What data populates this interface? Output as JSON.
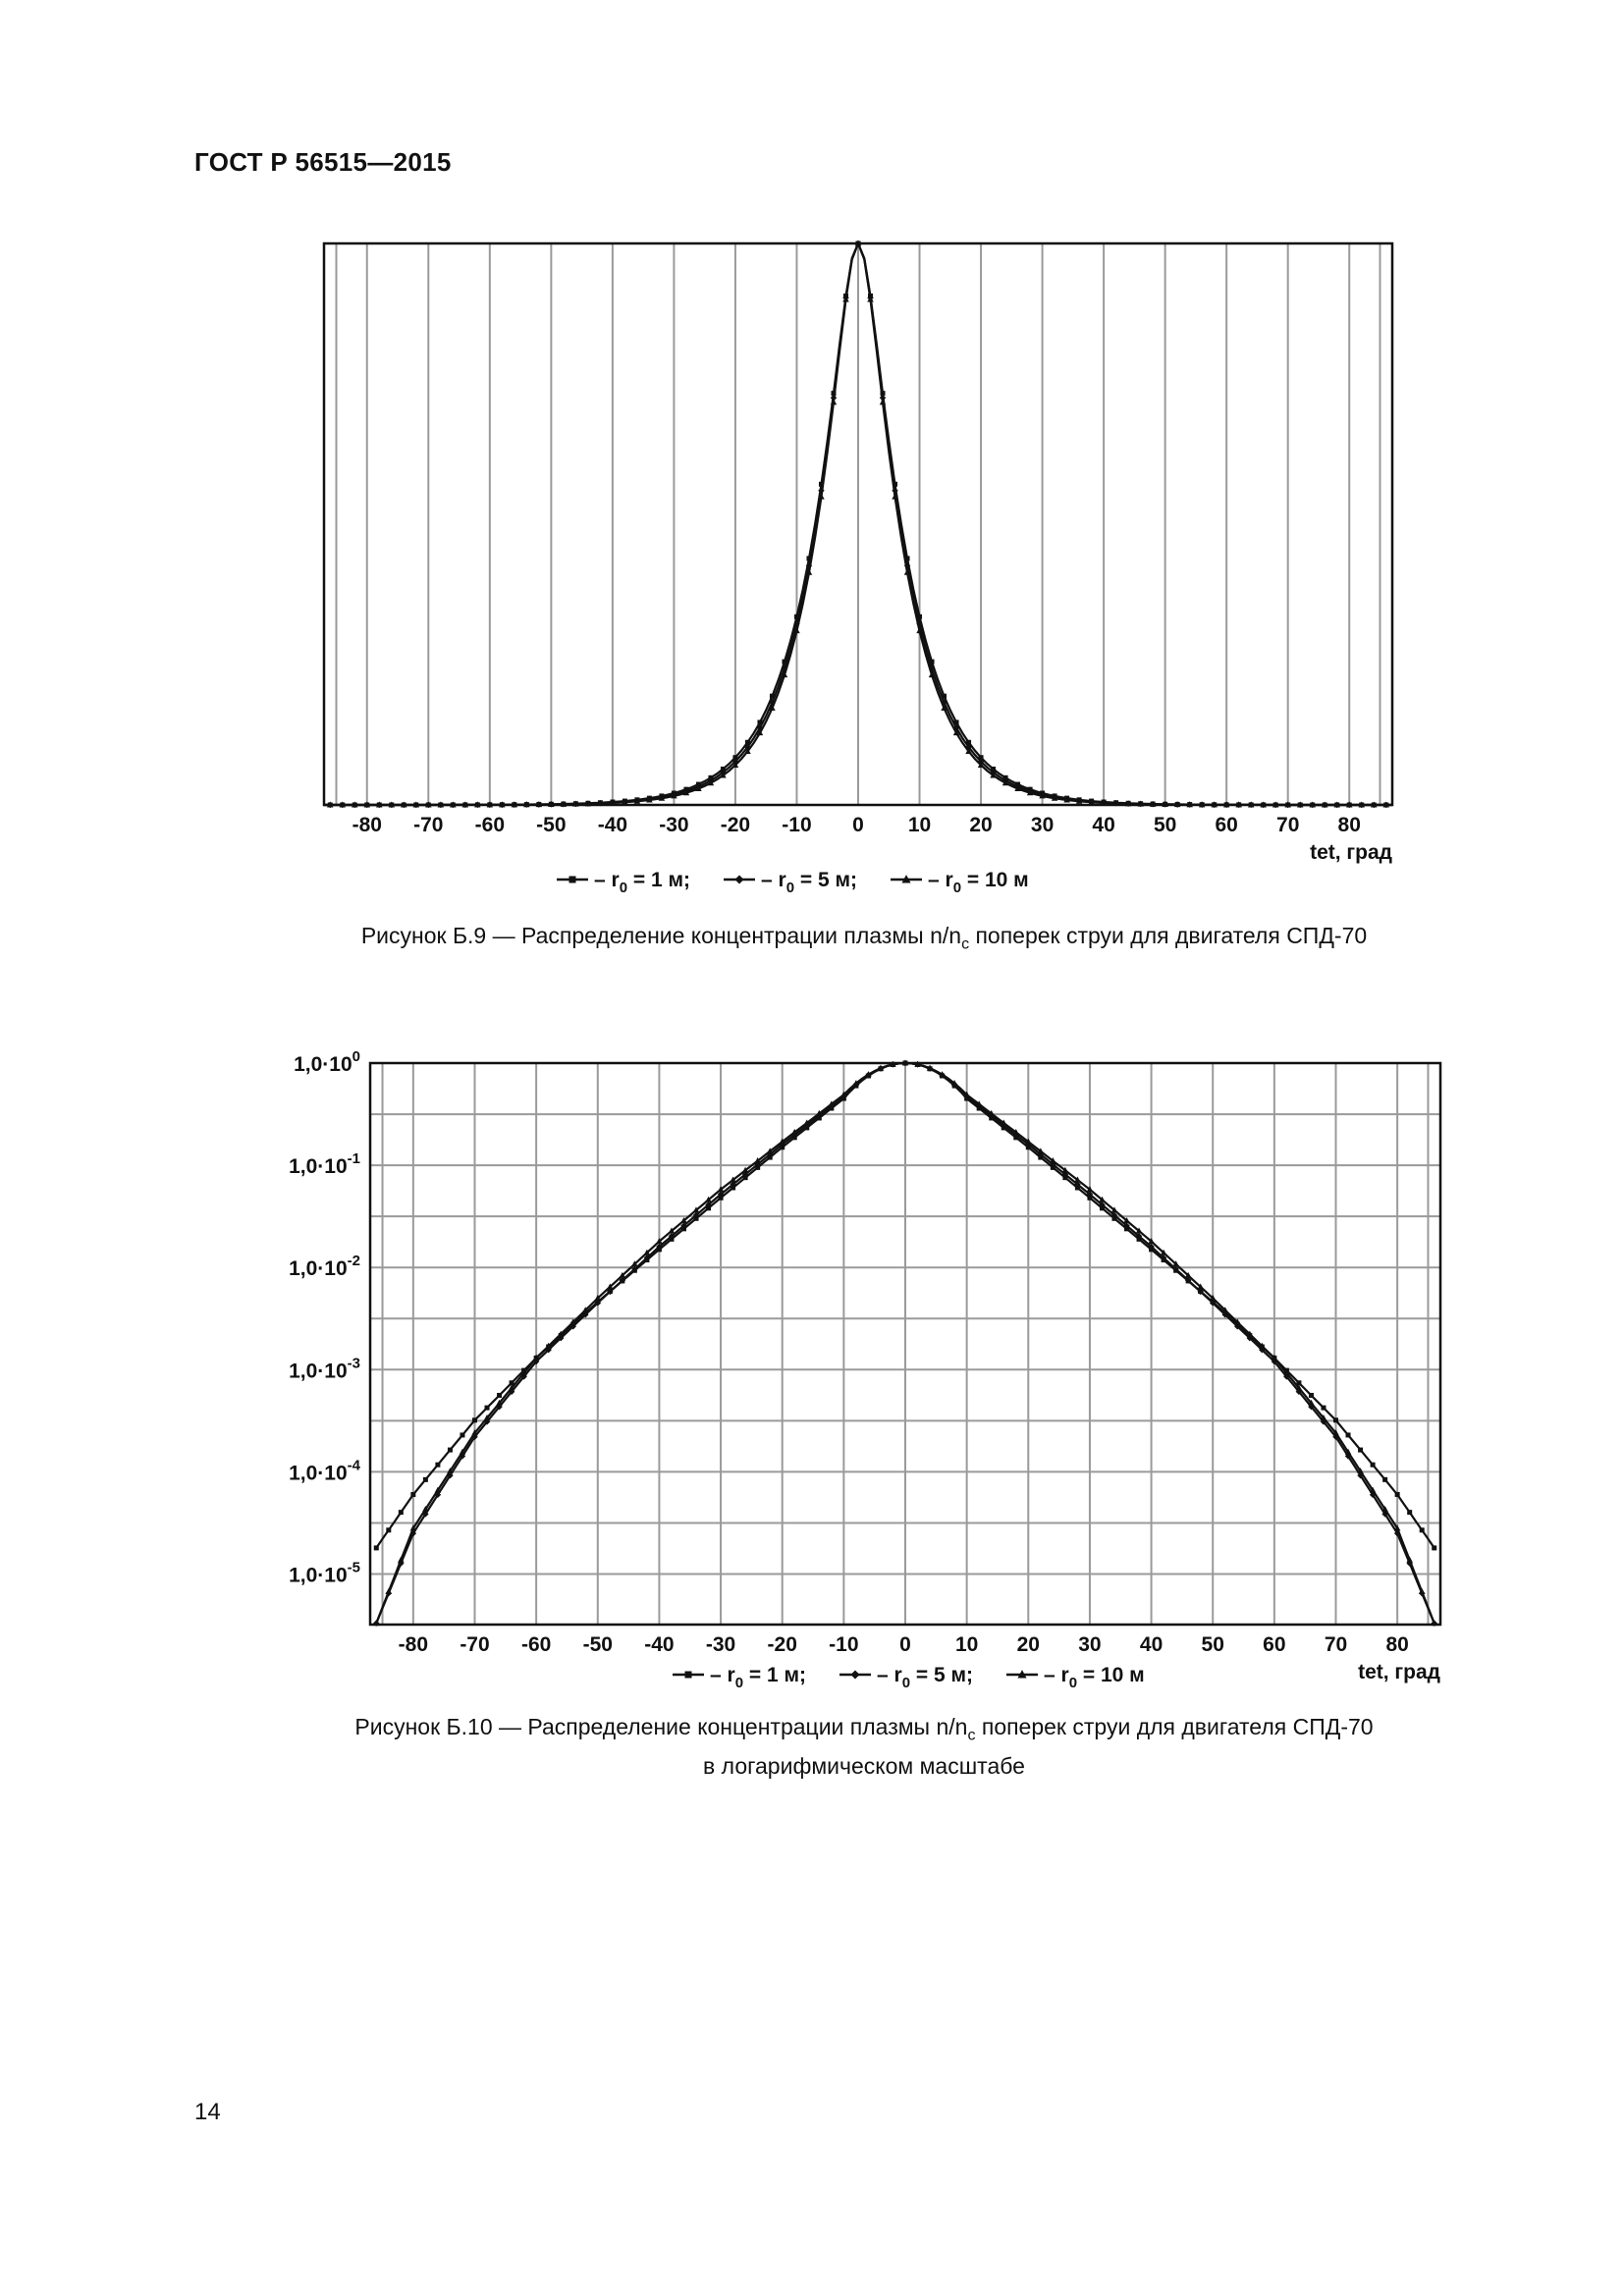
{
  "page": {
    "header": "ГОСТ Р 56515—2015",
    "page_number": "14"
  },
  "figures": [
    {
      "caption_lines": [
        "Рисунок Б.9 — Распределение концентрации плазмы n/n",
        "c",
        " поперек струи для двигателя СПД-70"
      ],
      "legend": [
        "– r",
        "0",
        " = 1 м;",
        "– r",
        "0",
        " = 5 м;",
        "– r",
        "0",
        " = 10 м"
      ]
    },
    {
      "caption_lines": [
        "Рисунок Б.10 — Распределение концентрации плазмы n/n",
        "c",
        " поперек струи для двигателя СПД-70",
        "в логарифмическом масштабе"
      ],
      "legend": [
        "– r",
        "0",
        " = 1 м;",
        "– r",
        "0",
        " = 5 м;",
        "– r",
        "0",
        " = 10 м"
      ]
    }
  ],
  "chart_data": [
    {
      "type": "line",
      "title": "",
      "xlabel": "tet, град",
      "ylabel": "",
      "xlim": [
        -87,
        87
      ],
      "ylim": [
        0,
        1
      ],
      "x_ticks": [
        "-80",
        "-70",
        "-60",
        "-50",
        "-40",
        "-30",
        "-20",
        "-10",
        "0",
        "10",
        "20",
        "30",
        "40",
        "50",
        "60",
        "70",
        "80"
      ],
      "grid": "vertical",
      "legend_position": "bottom",
      "series": [
        {
          "name": "r0 = 1 м",
          "marker": "square",
          "profile": {
            "k": 0.14,
            "soft": 2.5,
            "floor": 2e-05
          }
        },
        {
          "name": "r0 = 5 м",
          "marker": "diamond",
          "profile": {
            "k": 0.145,
            "soft": 2.5,
            "floor": 0.0
          }
        },
        {
          "name": "r0 = 10 м",
          "marker": "triangle",
          "profile": {
            "k": 0.15,
            "soft": 2.5,
            "floor": 0.0
          }
        }
      ]
    },
    {
      "type": "line",
      "title": "",
      "xlabel": "tet, град",
      "ylabel": "",
      "yscale": "log",
      "xlim": [
        -87,
        87
      ],
      "ylim": [
        3.2e-06,
        1.0
      ],
      "x_ticks": [
        "-80",
        "-70",
        "-60",
        "-50",
        "-40",
        "-30",
        "-20",
        "-10",
        "0",
        "10",
        "20",
        "30",
        "40",
        "50",
        "60",
        "70",
        "80"
      ],
      "y_ticks": [
        {
          "base": "1,0·10",
          "exp": "0"
        },
        {
          "base": "1,0·10",
          "exp": "-1"
        },
        {
          "base": "1,0·10",
          "exp": "-2"
        },
        {
          "base": "1,0·10",
          "exp": "-3"
        },
        {
          "base": "1,0·10",
          "exp": "-4"
        },
        {
          "base": "1,0·10",
          "exp": "-5"
        }
      ],
      "grid": "both",
      "legend_position": "bottom",
      "series": [
        {
          "name": "r0 = 1 м",
          "marker": "square",
          "samples": [
            [
              -86,
              1.8e-05
            ],
            [
              -80,
              6e-05
            ],
            [
              -70,
              0.00032
            ],
            [
              -60,
              0.0013
            ],
            [
              -50,
              0.0046
            ],
            [
              -40,
              0.015
            ],
            [
              -30,
              0.048
            ],
            [
              -20,
              0.15
            ],
            [
              -10,
              0.45
            ],
            [
              0,
              1.0
            ],
            [
              10,
              0.45
            ],
            [
              20,
              0.15
            ],
            [
              30,
              0.048
            ],
            [
              40,
              0.015
            ],
            [
              50,
              0.0046
            ],
            [
              60,
              0.0013
            ],
            [
              70,
              0.00032
            ],
            [
              80,
              6e-05
            ],
            [
              86,
              1.8e-05
            ]
          ]
        },
        {
          "name": "r0 = 5 м",
          "marker": "diamond",
          "samples": [
            [
              -86,
              3.3e-06
            ],
            [
              -80,
              2.5e-05
            ],
            [
              -70,
              0.00022
            ],
            [
              -60,
              0.0012
            ],
            [
              -50,
              0.0045
            ],
            [
              -40,
              0.016
            ],
            [
              -30,
              0.052
            ],
            [
              -20,
              0.16
            ],
            [
              -10,
              0.47
            ],
            [
              0,
              1.0
            ],
            [
              10,
              0.47
            ],
            [
              20,
              0.16
            ],
            [
              30,
              0.052
            ],
            [
              40,
              0.016
            ],
            [
              50,
              0.0045
            ],
            [
              60,
              0.0012
            ],
            [
              70,
              0.00022
            ],
            [
              80,
              2.5e-05
            ],
            [
              86,
              3.3e-06
            ]
          ]
        },
        {
          "name": "r0 = 10 м",
          "marker": "triangle",
          "samples": [
            [
              -86,
              3.3e-06
            ],
            [
              -80,
              2.8e-05
            ],
            [
              -70,
              0.00024
            ],
            [
              -60,
              0.0013
            ],
            [
              -50,
              0.005
            ],
            [
              -40,
              0.018
            ],
            [
              -30,
              0.058
            ],
            [
              -20,
              0.17
            ],
            [
              -10,
              0.49
            ],
            [
              0,
              1.0
            ],
            [
              10,
              0.49
            ],
            [
              20,
              0.17
            ],
            [
              30,
              0.058
            ],
            [
              40,
              0.018
            ],
            [
              50,
              0.005
            ],
            [
              60,
              0.0013
            ],
            [
              70,
              0.00024
            ],
            [
              80,
              2.8e-05
            ],
            [
              86,
              3.3e-06
            ]
          ]
        }
      ]
    }
  ]
}
